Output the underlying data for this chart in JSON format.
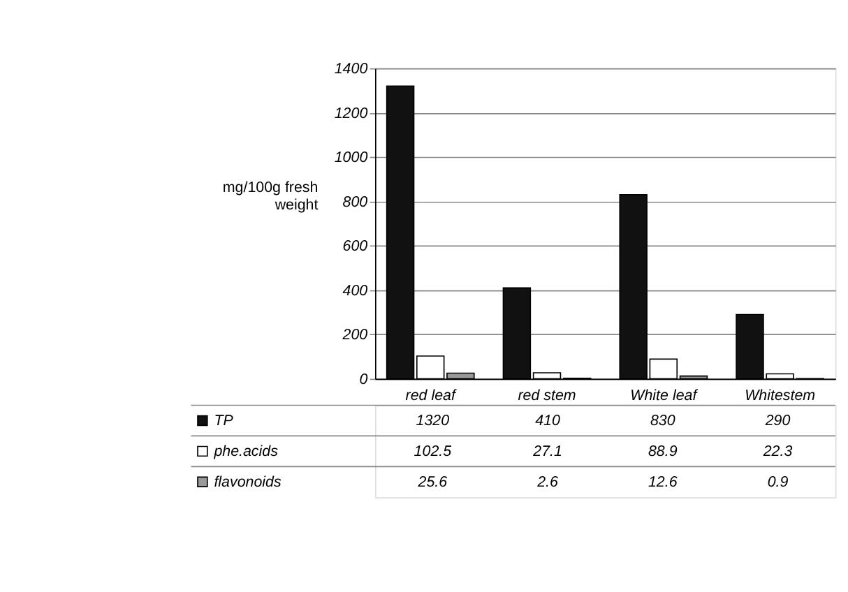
{
  "chart_data": {
    "type": "bar",
    "ylabel": "mg/100g fresh weight",
    "categories": [
      "red leaf",
      "red stem",
      "White leaf",
      "Whitestem"
    ],
    "series": [
      {
        "name": "TP",
        "color": "#111111",
        "values": [
          1320,
          410,
          830,
          290
        ]
      },
      {
        "name": "phe.acids",
        "color": "#ffffff",
        "values": [
          102.5,
          27.1,
          88.9,
          22.3
        ]
      },
      {
        "name": "flavonoids",
        "color": "#999999",
        "values": [
          25.6,
          2.6,
          12.6,
          0.9
        ]
      }
    ],
    "ylim": [
      0,
      1400
    ],
    "yticks": [
      0,
      200,
      400,
      600,
      800,
      1000,
      1200,
      1400
    ],
    "grid": "y",
    "legend": "bottom",
    "data_labels": true
  }
}
